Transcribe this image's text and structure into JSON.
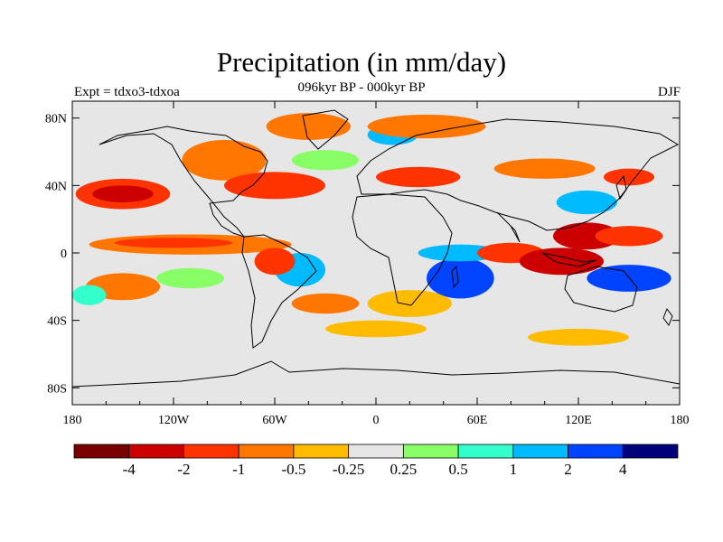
{
  "title": "Precipitation (in mm/day)",
  "subtitle": "096kyr BP - 000kyr BP",
  "left_label": "Expt = tdxo3-tdxoa",
  "right_label": "DJF",
  "colors": {
    "background": "#e6e6e6",
    "land_outline": "#000000",
    "frame": "#000000"
  },
  "axes": {
    "x_ticks": [
      {
        "value": -180,
        "label": "180"
      },
      {
        "value": -120,
        "label": "120W"
      },
      {
        "value": -60,
        "label": "60W"
      },
      {
        "value": 0,
        "label": "0"
      },
      {
        "value": 60,
        "label": "60E"
      },
      {
        "value": 120,
        "label": "120E"
      },
      {
        "value": 180,
        "label": "180"
      }
    ],
    "y_ticks": [
      {
        "value": 80,
        "label": "80N"
      },
      {
        "value": 40,
        "label": "40N"
      },
      {
        "value": 0,
        "label": "0"
      },
      {
        "value": -40,
        "label": "40S"
      },
      {
        "value": -80,
        "label": "80S"
      }
    ],
    "xlim": [
      -180,
      180
    ],
    "ylim": [
      -90,
      90
    ]
  },
  "colorbar": {
    "colors": [
      "#7a0000",
      "#cc0000",
      "#ff3300",
      "#ff7700",
      "#ffbb00",
      "#e6e6e6",
      "#88ff66",
      "#33ffcc",
      "#00bbff",
      "#0044ff",
      "#00007a"
    ],
    "labels": [
      "-4",
      "-2",
      "-1",
      "-0.5",
      "-0.25",
      "0.25",
      "0.5",
      "1",
      "2",
      "4"
    ]
  },
  "chart_data": {
    "type": "heatmap",
    "title": "Precipitation (in mm/day)",
    "subtitle": "096kyr BP - 000kyr BP",
    "xlim": [
      -180,
      180
    ],
    "ylim": [
      -90,
      90
    ],
    "levels": [
      -4,
      -2,
      -1,
      -0.5,
      -0.25,
      0.25,
      0.5,
      1,
      2,
      4
    ],
    "anomaly_regions": [
      {
        "lon": -150,
        "lat": 35,
        "rx": 28,
        "ry": 9,
        "level": "#ff3300"
      },
      {
        "lon": -150,
        "lat": 35,
        "rx": 18,
        "ry": 5,
        "level": "#cc0000"
      },
      {
        "lon": -110,
        "lat": 5,
        "rx": 60,
        "ry": 6,
        "level": "#ff7700"
      },
      {
        "lon": -120,
        "lat": 6,
        "rx": 35,
        "ry": 3,
        "level": "#ff3300"
      },
      {
        "lon": -150,
        "lat": -20,
        "rx": 22,
        "ry": 8,
        "level": "#ff7700"
      },
      {
        "lon": -110,
        "lat": -15,
        "rx": 20,
        "ry": 6,
        "level": "#88ff66"
      },
      {
        "lon": -170,
        "lat": -25,
        "rx": 10,
        "ry": 6,
        "level": "#33ffcc"
      },
      {
        "lon": -90,
        "lat": 55,
        "rx": 25,
        "ry": 12,
        "level": "#ff7700"
      },
      {
        "lon": -60,
        "lat": 40,
        "rx": 30,
        "ry": 8,
        "level": "#ff3300"
      },
      {
        "lon": -40,
        "lat": 75,
        "rx": 25,
        "ry": 8,
        "level": "#ff7700"
      },
      {
        "lon": -30,
        "lat": 55,
        "rx": 20,
        "ry": 6,
        "level": "#88ff66"
      },
      {
        "lon": 10,
        "lat": 70,
        "rx": 15,
        "ry": 6,
        "level": "#00bbff"
      },
      {
        "lon": 30,
        "lat": 75,
        "rx": 35,
        "ry": 7,
        "level": "#ff7700"
      },
      {
        "lon": 25,
        "lat": 45,
        "rx": 25,
        "ry": 6,
        "level": "#ff3300"
      },
      {
        "lon": -45,
        "lat": -10,
        "rx": 15,
        "ry": 10,
        "level": "#00bbff"
      },
      {
        "lon": -60,
        "lat": -5,
        "rx": 12,
        "ry": 8,
        "level": "#ff3300"
      },
      {
        "lon": -30,
        "lat": -30,
        "rx": 20,
        "ry": 6,
        "level": "#ff7700"
      },
      {
        "lon": 20,
        "lat": -30,
        "rx": 25,
        "ry": 8,
        "level": "#ffbb00"
      },
      {
        "lon": 50,
        "lat": -15,
        "rx": 20,
        "ry": 12,
        "level": "#0044ff"
      },
      {
        "lon": 50,
        "lat": 0,
        "rx": 25,
        "ry": 5,
        "level": "#00bbff"
      },
      {
        "lon": 80,
        "lat": 0,
        "rx": 20,
        "ry": 6,
        "level": "#ff3300"
      },
      {
        "lon": 110,
        "lat": -5,
        "rx": 25,
        "ry": 8,
        "level": "#cc0000"
      },
      {
        "lon": 125,
        "lat": 10,
        "rx": 20,
        "ry": 8,
        "level": "#cc0000"
      },
      {
        "lon": 150,
        "lat": -15,
        "rx": 25,
        "ry": 8,
        "level": "#0044ff"
      },
      {
        "lon": 150,
        "lat": 10,
        "rx": 20,
        "ry": 6,
        "level": "#ff3300"
      },
      {
        "lon": 125,
        "lat": 30,
        "rx": 18,
        "ry": 7,
        "level": "#00bbff"
      },
      {
        "lon": 100,
        "lat": 50,
        "rx": 30,
        "ry": 6,
        "level": "#ff7700"
      },
      {
        "lon": 150,
        "lat": 45,
        "rx": 15,
        "ry": 5,
        "level": "#ff3300"
      },
      {
        "lon": 0,
        "lat": -45,
        "rx": 30,
        "ry": 5,
        "level": "#ffbb00"
      },
      {
        "lon": 120,
        "lat": -50,
        "rx": 30,
        "ry": 5,
        "level": "#ffbb00"
      }
    ]
  }
}
